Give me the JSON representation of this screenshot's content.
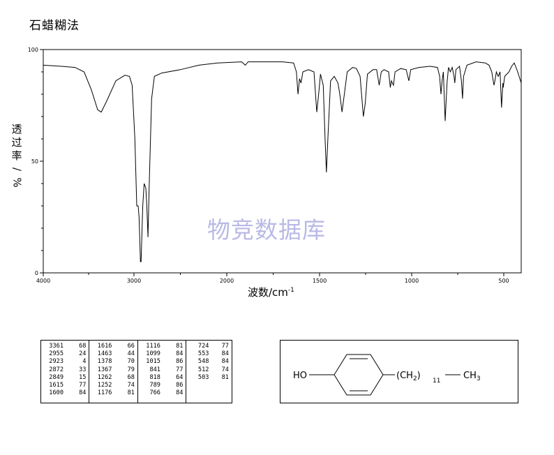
{
  "page": {
    "title": "石蜡糊法",
    "y_label_chars": [
      "透",
      "过",
      "率",
      "/",
      "%"
    ],
    "x_label": "波数/cm",
    "x_label_sup": "-1",
    "watermark": "物竞数据库"
  },
  "chart_data": {
    "type": "line",
    "title": "石蜡糊法",
    "xlabel": "波数/cm-1",
    "ylabel": "透过率/%",
    "xlim": [
      4000,
      400
    ],
    "ylim": [
      0,
      100
    ],
    "x_ticks": [
      "4000",
      "3000",
      "2000",
      "1500",
      "1000",
      "500"
    ],
    "x_tick_values": [
      4000,
      3000,
      2000,
      1500,
      1000,
      500
    ],
    "y_ticks": [
      "100",
      "50",
      "0"
    ],
    "y_tick_values": [
      100,
      50,
      0
    ],
    "grid": false,
    "series": [
      {
        "points": [
          [
            4000,
            93
          ],
          [
            3800,
            92.5
          ],
          [
            3650,
            92
          ],
          [
            3550,
            90
          ],
          [
            3470,
            82
          ],
          [
            3400,
            73
          ],
          [
            3361,
            72
          ],
          [
            3300,
            77
          ],
          [
            3200,
            86
          ],
          [
            3100,
            88.5
          ],
          [
            3050,
            88
          ],
          [
            3020,
            84
          ],
          [
            2990,
            60
          ],
          [
            2970,
            30
          ],
          [
            2955,
            30
          ],
          [
            2945,
            25
          ],
          [
            2930,
            5
          ],
          [
            2923,
            5
          ],
          [
            2905,
            30
          ],
          [
            2890,
            40
          ],
          [
            2872,
            38
          ],
          [
            2862,
            30
          ],
          [
            2849,
            16
          ],
          [
            2835,
            40
          ],
          [
            2810,
            78
          ],
          [
            2780,
            88
          ],
          [
            2700,
            89.5
          ],
          [
            2500,
            91
          ],
          [
            2300,
            93
          ],
          [
            2100,
            94
          ],
          [
            1920,
            94.5
          ],
          [
            1900,
            93
          ],
          [
            1885,
            94.5
          ],
          [
            1700,
            94.5
          ],
          [
            1640,
            94
          ],
          [
            1625,
            90
          ],
          [
            1616,
            80
          ],
          [
            1608,
            87
          ],
          [
            1600,
            85
          ],
          [
            1590,
            90
          ],
          [
            1560,
            91
          ],
          [
            1530,
            90
          ],
          [
            1515,
            72
          ],
          [
            1505,
            80
          ],
          [
            1495,
            89
          ],
          [
            1480,
            84
          ],
          [
            1470,
            60
          ],
          [
            1463,
            45
          ],
          [
            1455,
            60
          ],
          [
            1440,
            86
          ],
          [
            1420,
            88
          ],
          [
            1400,
            85
          ],
          [
            1390,
            80
          ],
          [
            1378,
            72
          ],
          [
            1367,
            79
          ],
          [
            1350,
            90
          ],
          [
            1320,
            92
          ],
          [
            1300,
            91.5
          ],
          [
            1280,
            88
          ],
          [
            1262,
            70
          ],
          [
            1252,
            76
          ],
          [
            1240,
            89
          ],
          [
            1210,
            91
          ],
          [
            1190,
            91
          ],
          [
            1176,
            84
          ],
          [
            1165,
            90
          ],
          [
            1150,
            91
          ],
          [
            1125,
            90
          ],
          [
            1116,
            83
          ],
          [
            1110,
            86
          ],
          [
            1099,
            84
          ],
          [
            1090,
            90
          ],
          [
            1060,
            91.5
          ],
          [
            1030,
            91
          ],
          [
            1015,
            86
          ],
          [
            1005,
            91
          ],
          [
            960,
            92
          ],
          [
            900,
            92.5
          ],
          [
            860,
            92
          ],
          [
            848,
            88
          ],
          [
            841,
            80
          ],
          [
            835,
            86
          ],
          [
            828,
            90
          ],
          [
            818,
            68
          ],
          [
            808,
            85
          ],
          [
            800,
            92
          ],
          [
            790,
            90
          ],
          [
            780,
            92
          ],
          [
            770,
            88
          ],
          [
            766,
            85
          ],
          [
            760,
            91
          ],
          [
            740,
            92.5
          ],
          [
            730,
            86
          ],
          [
            724,
            78
          ],
          [
            718,
            88
          ],
          [
            700,
            93
          ],
          [
            650,
            94.5
          ],
          [
            600,
            94
          ],
          [
            580,
            93
          ],
          [
            565,
            90
          ],
          [
            553,
            84
          ],
          [
            548,
            86
          ],
          [
            540,
            90
          ],
          [
            530,
            88
          ],
          [
            520,
            90
          ],
          [
            512,
            74
          ],
          [
            505,
            85
          ],
          [
            503,
            83
          ],
          [
            495,
            88
          ],
          [
            470,
            90
          ],
          [
            455,
            92.5
          ],
          [
            440,
            94
          ],
          [
            420,
            90
          ],
          [
            400,
            85
          ]
        ]
      }
    ]
  },
  "peak_table": {
    "columns": [
      [
        [
          "3361",
          "68"
        ],
        [
          "2955",
          "24"
        ],
        [
          "2923",
          "4"
        ],
        [
          "2872",
          "33"
        ],
        [
          "2849",
          "15"
        ],
        [
          "1615",
          "77"
        ],
        [
          "1600",
          "84"
        ]
      ],
      [
        [
          "1616",
          "66"
        ],
        [
          "1463",
          "44"
        ],
        [
          "1378",
          "70"
        ],
        [
          "1367",
          "79"
        ],
        [
          "1262",
          "68"
        ],
        [
          "1252",
          "74"
        ],
        [
          "1176",
          "81"
        ]
      ],
      [
        [
          "1116",
          "81"
        ],
        [
          "1099",
          "84"
        ],
        [
          "1015",
          "86"
        ],
        [
          "841",
          "77"
        ],
        [
          "818",
          "64"
        ],
        [
          "789",
          "86"
        ],
        [
          "766",
          "84"
        ]
      ],
      [
        [
          "724",
          "77"
        ],
        [
          "553",
          "84"
        ],
        [
          "548",
          "84"
        ],
        [
          "512",
          "74"
        ],
        [
          "503",
          "81"
        ]
      ]
    ]
  },
  "structure": {
    "ho": "HO",
    "ch2_open": "(CH",
    "ch2_sub": "2",
    "ch2_close": ")",
    "repeat": "11",
    "ch3": "CH",
    "ch3_sub": "3"
  }
}
